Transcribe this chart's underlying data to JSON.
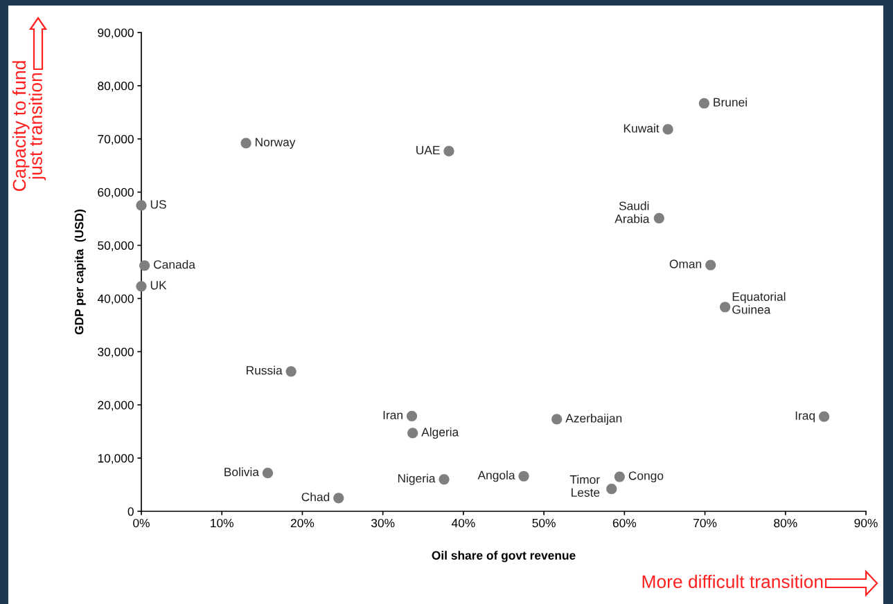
{
  "chart_data": {
    "type": "scatter",
    "xlabel": "Oil share of govt revenue",
    "ylabel": "GDP per capita  (USD)",
    "series": [
      {
        "color": "#7f7f7f",
        "x": [
          69.9,
          65.4,
          13.0,
          38.2,
          0,
          64.3,
          0.4,
          70.7,
          0,
          72.5,
          18.6,
          33.6,
          51.6,
          84.8,
          33.7,
          15.7,
          47.5,
          59.4,
          37.6,
          58.4,
          24.5
        ],
        "values": [
          76700,
          71800,
          69200,
          67700,
          57500,
          55100,
          46200,
          46300,
          42300,
          38400,
          26300,
          17900,
          17300,
          17800,
          14700,
          7200,
          6600,
          6500,
          6000,
          4200,
          2500
        ]
      }
    ],
    "marker": "circle",
    "grid": false,
    "xlim": [
      0,
      90
    ],
    "xticks": [
      {
        "value": 0,
        "label": "0%"
      },
      {
        "value": 10,
        "label": "10%"
      },
      {
        "value": 20,
        "label": "20%"
      },
      {
        "value": 30,
        "label": "30%"
      },
      {
        "value": 40,
        "label": "40%"
      },
      {
        "value": 50,
        "label": "50%"
      },
      {
        "value": 60,
        "label": "60%"
      },
      {
        "value": 70,
        "label": "70%"
      },
      {
        "value": 80,
        "label": "80%"
      },
      {
        "value": 90,
        "label": "90%"
      }
    ],
    "ylim": [
      0,
      90000
    ],
    "yticks": [
      0,
      {
        "value": 10000,
        "label": "10,000"
      },
      {
        "value": 20000,
        "label": "20,000"
      },
      {
        "value": 30000,
        "label": "30,000"
      },
      {
        "value": 40000,
        "label": "40,000"
      },
      {
        "value": 50000,
        "label": "50,000"
      },
      {
        "value": 60000,
        "label": "60,000"
      },
      {
        "value": 70000,
        "label": "70,000"
      },
      {
        "value": 80000,
        "label": "80,000"
      },
      {
        "value": 90000,
        "label": "90,000"
      }
    ],
    "annotations": [
      {
        "text": "Brunei",
        "x": 69.9,
        "y": 76700
      },
      {
        "text": "Kuwait",
        "x": 65.4,
        "y": 71800
      },
      {
        "text": "Norway",
        "x": 13.0,
        "y": 69200
      },
      {
        "text": "UAE",
        "x": 38.2,
        "y": 67700
      },
      {
        "text": "US",
        "x": 0,
        "y": 57500
      },
      {
        "text": "Saudi\nArabia",
        "x": 64.3,
        "y": 55100
      },
      {
        "text": "Canada",
        "x": 0.4,
        "y": 46200
      },
      {
        "text": "Oman",
        "x": 70.7,
        "y": 46300
      },
      {
        "text": "UK",
        "x": 0,
        "y": 42300
      },
      {
        "text": "Equatorial\nGuinea",
        "x": 72.5,
        "y": 38400
      },
      {
        "text": "Russia",
        "x": 18.6,
        "y": 26300
      },
      {
        "text": "Iran",
        "x": 33.6,
        "y": 17900
      },
      {
        "text": "Azerbaijan",
        "x": 51.6,
        "y": 17300
      },
      {
        "text": "Iraq",
        "x": 84.8,
        "y": 17800
      },
      {
        "text": "Algeria",
        "x": 33.7,
        "y": 14700
      },
      {
        "text": "Bolivia",
        "x": 15.7,
        "y": 7200
      },
      {
        "text": "Angola",
        "x": 47.5,
        "y": 6600
      },
      {
        "text": "Congo",
        "x": 59.4,
        "y": 6500
      },
      {
        "text": "Nigeria",
        "x": 37.6,
        "y": 6000
      },
      {
        "text": "Timor\nLeste",
        "x": 58.4,
        "y": 4200
      },
      {
        "text": "Chad",
        "x": 24.5,
        "y": 2500
      },
      "Capacity to fund\njust transition",
      "More difficult transition"
    ]
  }
}
